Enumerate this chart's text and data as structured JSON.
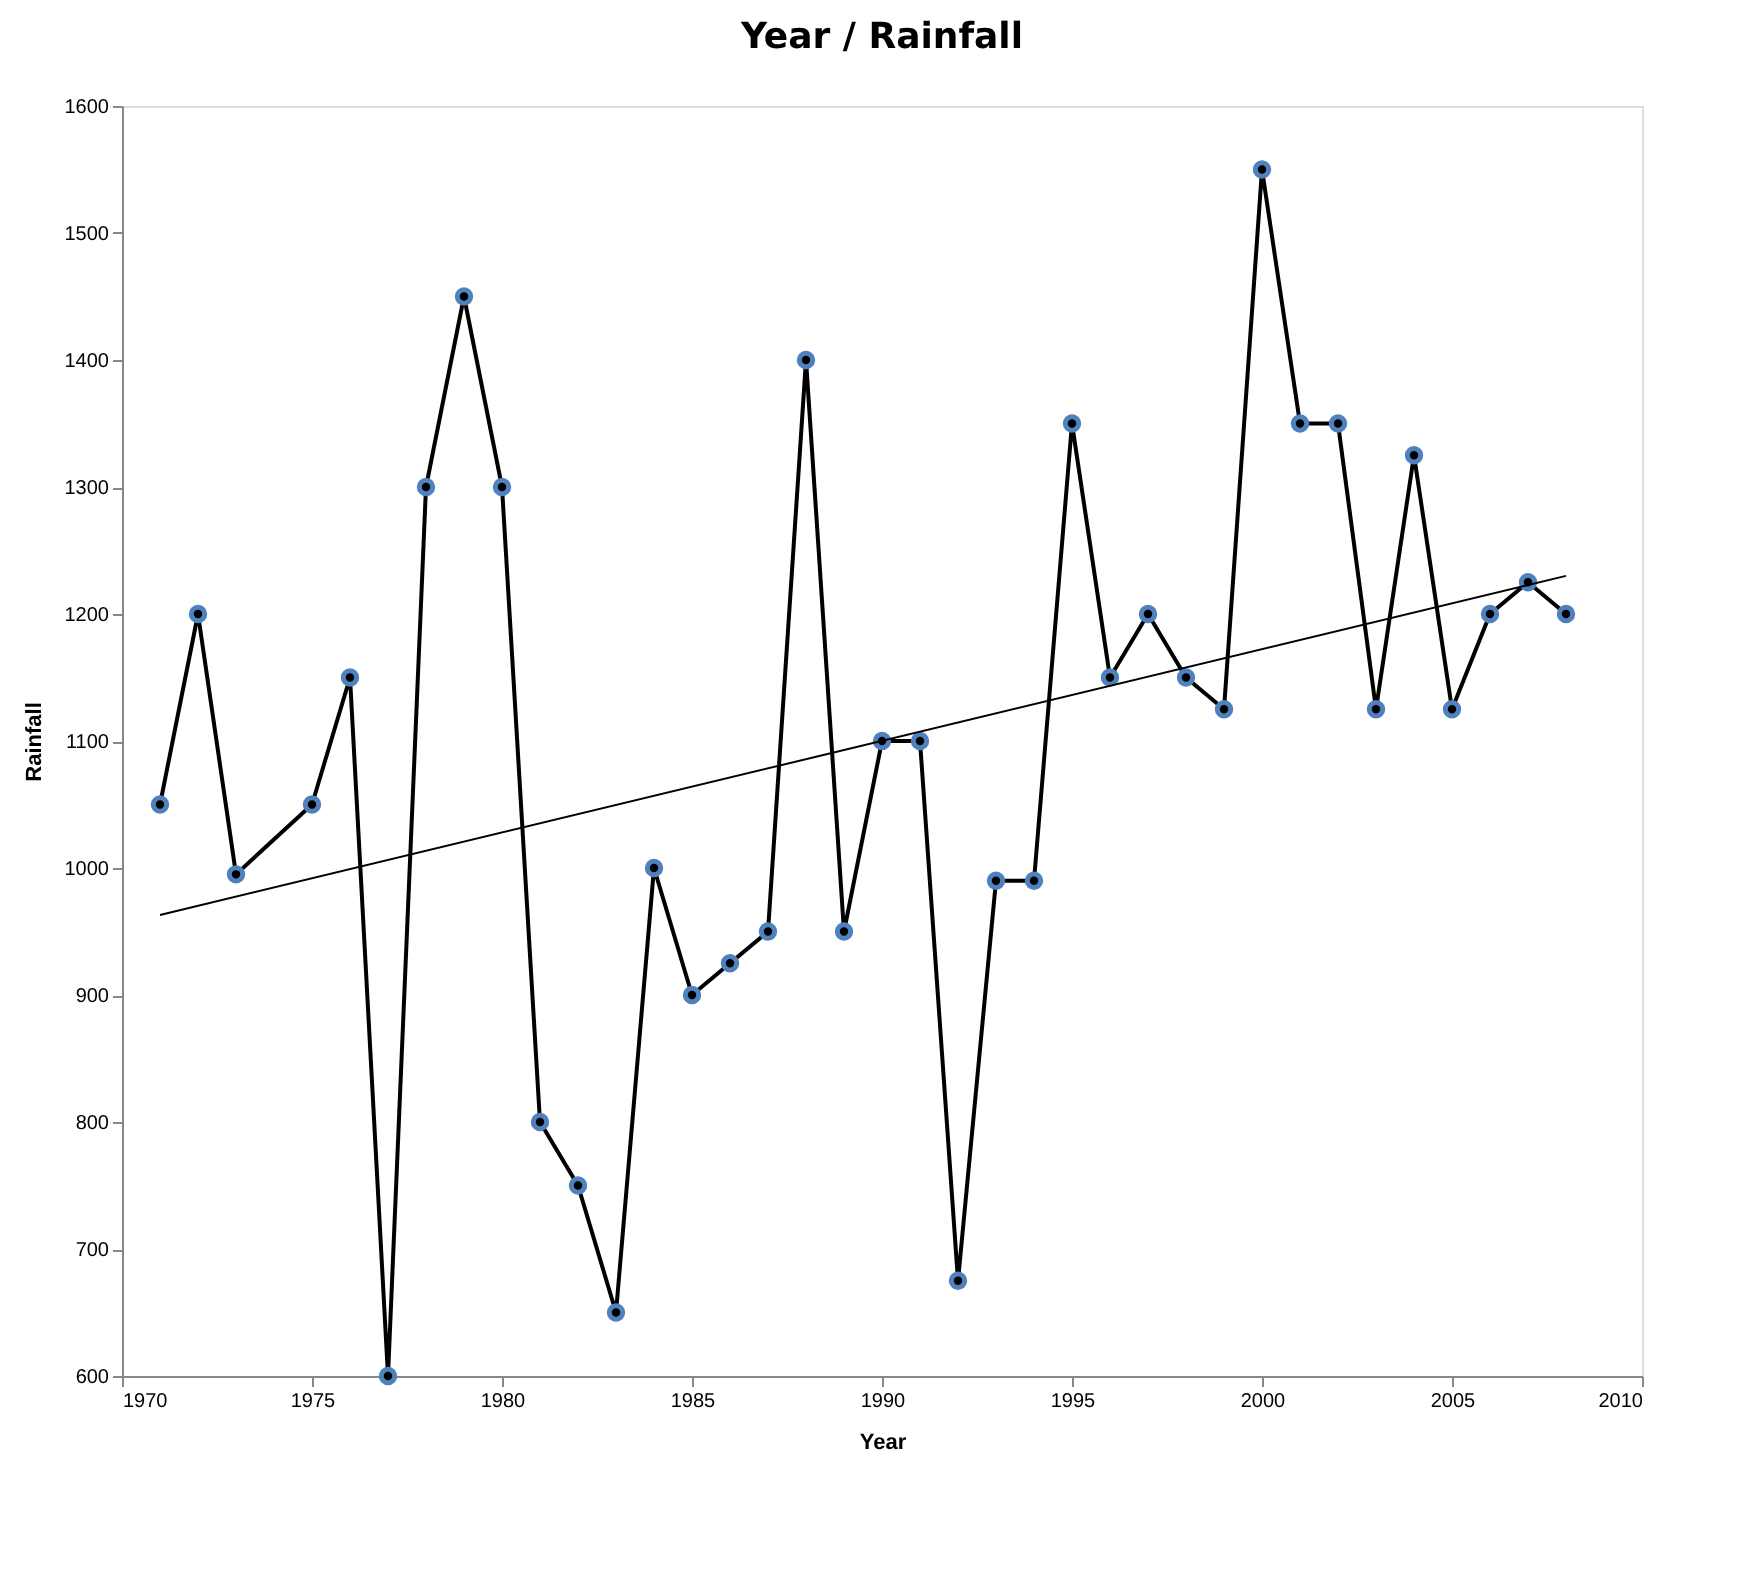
{
  "chart_data": {
    "type": "line",
    "title": "Year / Rainfall",
    "xlabel": "Year",
    "ylabel": "Rainfall",
    "xlim": [
      1970,
      2010
    ],
    "xticks": [
      1970,
      1975,
      1980,
      1985,
      1990,
      1995,
      2000,
      2005,
      2010
    ],
    "ylim": [
      600,
      1600
    ],
    "yticks": [
      600,
      700,
      800,
      900,
      1000,
      1100,
      1200,
      1300,
      1400,
      1500,
      1600
    ],
    "grid": false,
    "series": [
      {
        "color": "#000000",
        "marker": "circle",
        "line_style": "solid",
        "x": [
          1971,
          1972,
          1973,
          1975,
          1976,
          1977,
          1978,
          1979,
          1980,
          1981,
          1982,
          1983,
          1984,
          1985,
          1986,
          1987,
          1988,
          1989,
          1990,
          1991,
          1992,
          1993,
          1994,
          1995,
          1996,
          1997,
          1998,
          1999,
          2000,
          2001,
          2002,
          2003,
          2004,
          2005,
          2006,
          2007,
          2008
        ],
        "values": [
          1050,
          1200,
          995,
          1050,
          1150,
          600,
          1300,
          1450,
          1300,
          800,
          750,
          650,
          1000,
          900,
          925,
          950,
          1400,
          950,
          1100,
          1100,
          675,
          990,
          990,
          1350,
          1150,
          1200,
          1150,
          1125,
          1550,
          1350,
          1350,
          1125,
          1325,
          1125,
          1200,
          1225,
          1200
        ]
      },
      {
        "type": "line",
        "color": "#000000",
        "marker": "none",
        "line_style": "solid",
        "x": [
          1971,
          2008
        ],
        "values": [
          963,
          1230
        ]
      }
    ]
  }
}
